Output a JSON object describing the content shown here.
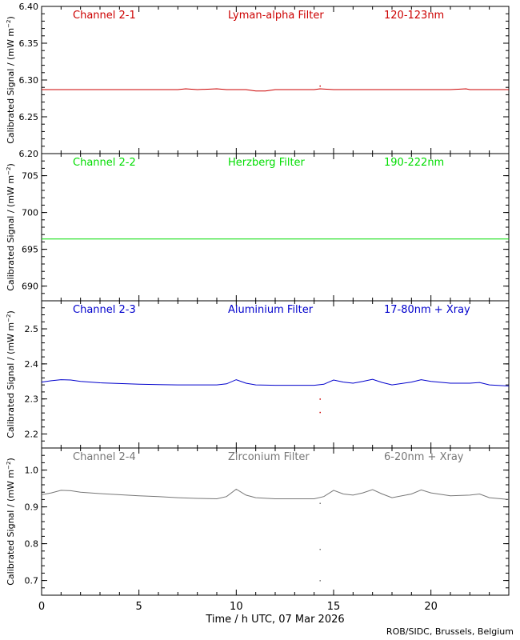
{
  "footer": "ROB/SIDC, Brussels, Belgium",
  "chart_data": {
    "type": "line",
    "xlabel": "Time / h UTC, 07 Mar 2026",
    "xlim": [
      0,
      24
    ],
    "xticks": [
      0,
      5,
      10,
      15,
      20
    ],
    "ylabel_main": "Calibrated Signal / (mW m",
    "ylabel_sup": "−2",
    "ylabel_close": ")",
    "panels": [
      {
        "channel": "Channel 2-1",
        "filter": "Lyman-alpha Filter",
        "band": "120-123nm",
        "color": "#cc0000",
        "ylim": [
          6.2,
          6.4
        ],
        "yticks": [
          6.2,
          6.25,
          6.3,
          6.35,
          6.4
        ],
        "ytick_labels": [
          "6.20",
          "6.25",
          "6.30",
          "6.35",
          "6.40"
        ],
        "x": [
          0,
          1,
          2,
          3,
          4,
          5,
          6,
          7,
          7.4,
          8,
          9,
          9.5,
          10,
          10.5,
          11,
          11.5,
          12,
          13,
          14,
          14.3,
          15,
          16,
          17,
          18,
          19,
          20,
          21,
          21.8,
          22,
          23,
          24
        ],
        "y": [
          6.287,
          6.287,
          6.287,
          6.287,
          6.287,
          6.287,
          6.287,
          6.287,
          6.288,
          6.287,
          6.288,
          6.287,
          6.287,
          6.287,
          6.285,
          6.285,
          6.287,
          6.287,
          6.287,
          6.288,
          6.287,
          6.287,
          6.287,
          6.287,
          6.287,
          6.287,
          6.287,
          6.288,
          6.287,
          6.287,
          6.287
        ],
        "outliers": [
          [
            14.3,
            6.292
          ]
        ]
      },
      {
        "channel": "Channel 2-2",
        "filter": "Herzberg Filter",
        "band": "190-222nm",
        "color": "#00dd00",
        "ylim": [
          688,
          708
        ],
        "yticks": [
          690,
          695,
          700,
          705
        ],
        "ytick_labels": [
          "690",
          "695",
          "700",
          "705"
        ],
        "x": [
          0,
          2,
          4,
          6,
          8,
          10,
          12,
          14,
          16,
          18,
          20,
          22,
          24
        ],
        "y": [
          696.4,
          696.4,
          696.4,
          696.4,
          696.4,
          696.4,
          696.4,
          696.4,
          696.4,
          696.4,
          696.4,
          696.4,
          696.4
        ],
        "outliers": []
      },
      {
        "channel": "Channel 2-3",
        "filter": "Aluminium Filter",
        "band": "17-80nm + Xray",
        "color": "#0000cc",
        "ylim": [
          2.16,
          2.58
        ],
        "yticks": [
          2.2,
          2.3,
          2.4,
          2.5
        ],
        "ytick_labels": [
          "2.2",
          "2.3",
          "2.4",
          "2.5"
        ],
        "x": [
          0,
          0.5,
          1,
          1.5,
          2,
          3,
          4,
          5,
          6,
          7,
          8,
          9,
          9.5,
          10,
          10.5,
          11,
          12,
          13,
          14,
          14.5,
          15,
          15.5,
          16,
          16.5,
          17,
          17.5,
          18,
          19,
          19.5,
          20,
          21,
          22,
          22.5,
          23,
          24
        ],
        "y": [
          2.348,
          2.352,
          2.355,
          2.354,
          2.35,
          2.346,
          2.344,
          2.342,
          2.341,
          2.34,
          2.34,
          2.34,
          2.343,
          2.355,
          2.345,
          2.34,
          2.339,
          2.339,
          2.339,
          2.342,
          2.354,
          2.348,
          2.345,
          2.35,
          2.356,
          2.347,
          2.34,
          2.348,
          2.355,
          2.35,
          2.345,
          2.345,
          2.347,
          2.34,
          2.337
        ],
        "outliers": [
          [
            14.3,
            2.3
          ],
          [
            14.3,
            2.262
          ]
        ]
      },
      {
        "channel": "Channel 2-4",
        "filter": "Zirconium Filter",
        "band": "6-20nm + Xray",
        "color": "#777777",
        "ylim": [
          0.66,
          1.06
        ],
        "yticks": [
          0.7,
          0.8,
          0.9,
          1.0
        ],
        "ytick_labels": [
          "0.7",
          "0.8",
          "0.9",
          "1.0"
        ],
        "x": [
          0,
          0.5,
          1,
          1.5,
          2,
          3,
          4,
          5,
          6,
          7,
          8,
          9,
          9.5,
          10,
          10.5,
          11,
          12,
          13,
          14,
          14.5,
          15,
          15.5,
          16,
          16.5,
          17,
          17.5,
          18,
          19,
          19.5,
          20,
          21,
          22,
          22.5,
          23,
          24
        ],
        "y": [
          0.933,
          0.938,
          0.945,
          0.944,
          0.94,
          0.936,
          0.933,
          0.93,
          0.928,
          0.925,
          0.923,
          0.922,
          0.928,
          0.948,
          0.932,
          0.925,
          0.922,
          0.922,
          0.922,
          0.928,
          0.945,
          0.935,
          0.932,
          0.938,
          0.947,
          0.935,
          0.925,
          0.935,
          0.946,
          0.938,
          0.93,
          0.932,
          0.935,
          0.925,
          0.92
        ],
        "outliers": [
          [
            14.3,
            0.785
          ],
          [
            14.3,
            0.7
          ],
          [
            14.3,
            0.91
          ]
        ]
      }
    ]
  }
}
